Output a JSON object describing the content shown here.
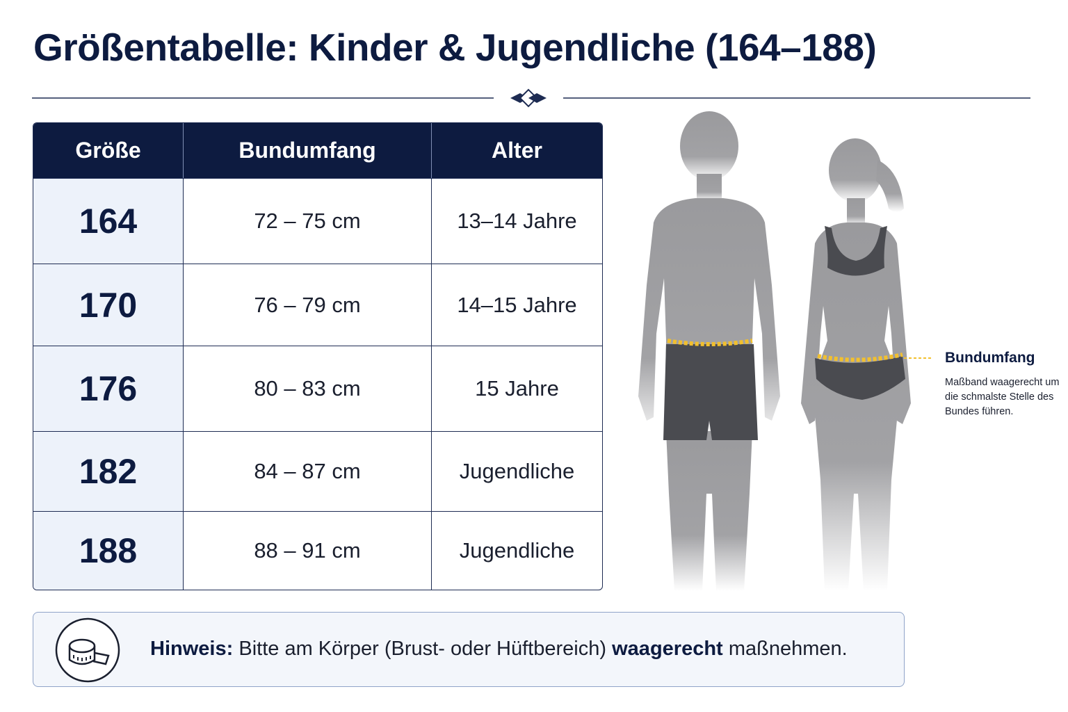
{
  "header": {
    "title": "Größentabelle: Kinder & Jugendliche (164–188)"
  },
  "table": {
    "columns": [
      "Größe",
      "Bundumfang",
      "Alter"
    ],
    "rows": [
      [
        "164",
        "72 – 75 cm",
        "13–14 Jahre"
      ],
      [
        "170",
        "76 – 79 cm",
        "14–15 Jahre"
      ],
      [
        "176",
        "80 – 83 cm",
        "15 Jahre"
      ],
      [
        "182",
        "84 – 87 cm",
        "Jugendliche"
      ],
      [
        "188",
        "88 – 91 cm",
        "Jugendliche"
      ]
    ]
  },
  "annotation": {
    "title": "Bundumfang",
    "text": "Maßband waagerecht um die schmalste Stelle des Bundes führen."
  },
  "hint": {
    "parts": [
      "Hinweis:",
      "Bitte am Körper (Brust- oder Hüftbereich)",
      "waagerecht",
      "maßnehmen."
    ]
  }
}
